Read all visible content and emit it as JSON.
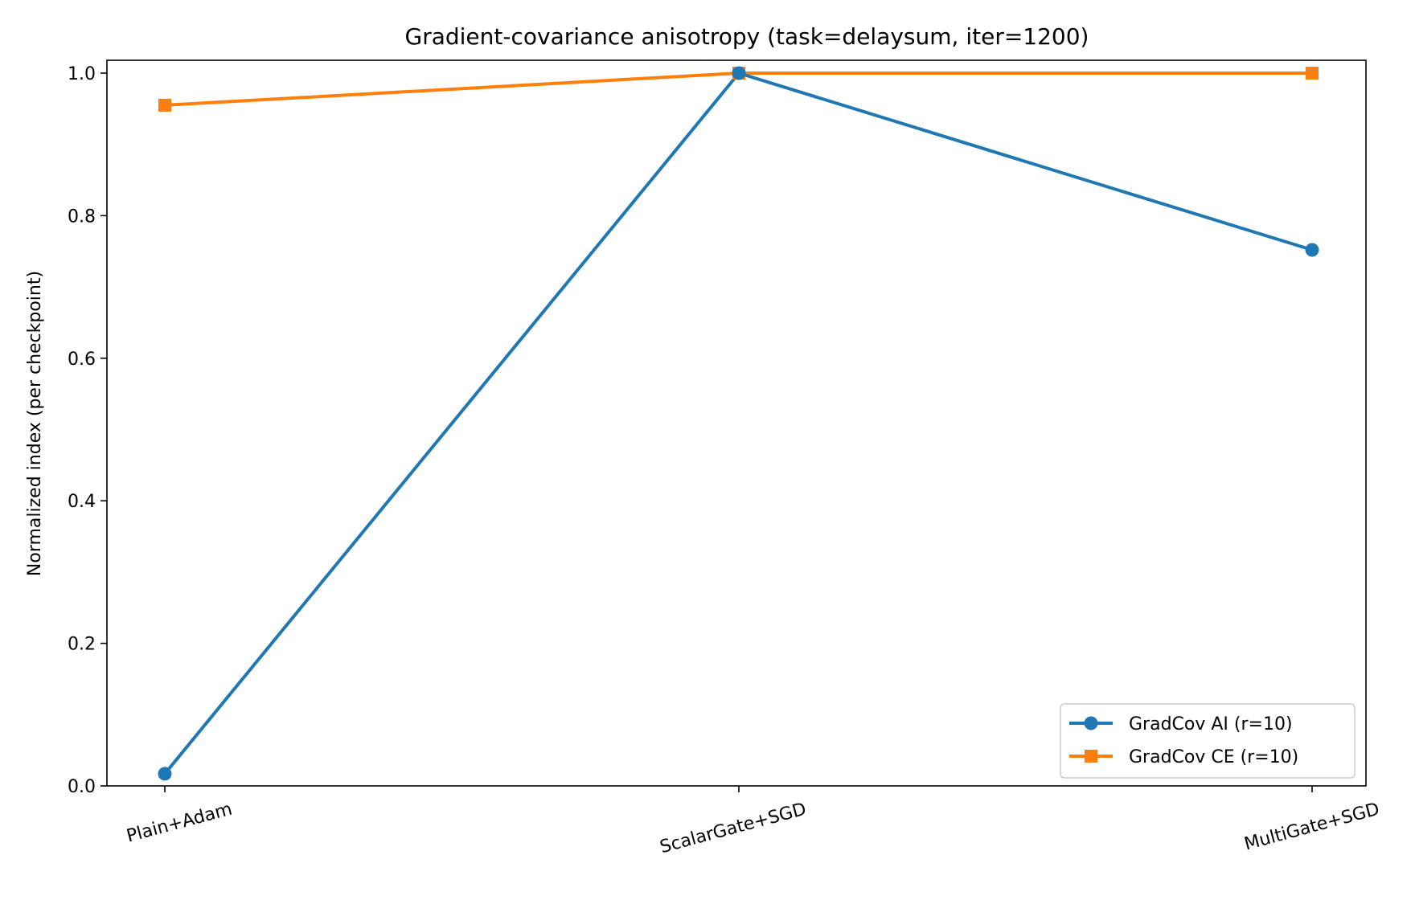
{
  "chart_data": {
    "type": "line",
    "title": "Gradient-covariance anisotropy (task=delaysum, iter=1200)",
    "xlabel": "",
    "ylabel": "Normalized index (per checkpoint)",
    "categories": [
      "Plain+Adam",
      "ScalarGate+SGD",
      "MultiGate+SGD"
    ],
    "ylim": [
      0.0,
      1.02
    ],
    "yticks": [
      "0.0",
      "0.2",
      "0.4",
      "0.6",
      "0.8",
      "1.0"
    ],
    "ytick_values": [
      0.0,
      0.2,
      0.4,
      0.6,
      0.8,
      1.0
    ],
    "grid": false,
    "legend_position": "lower-right",
    "series": [
      {
        "name": "GradCov AI (r=10)",
        "values": [
          0.017,
          1.0,
          0.752
        ],
        "color": "#1f77b4",
        "marker": "circle"
      },
      {
        "name": "GradCov CE (r=10)",
        "values": [
          0.955,
          1.0,
          1.0
        ],
        "color": "#ff7f0e",
        "marker": "square"
      }
    ]
  }
}
